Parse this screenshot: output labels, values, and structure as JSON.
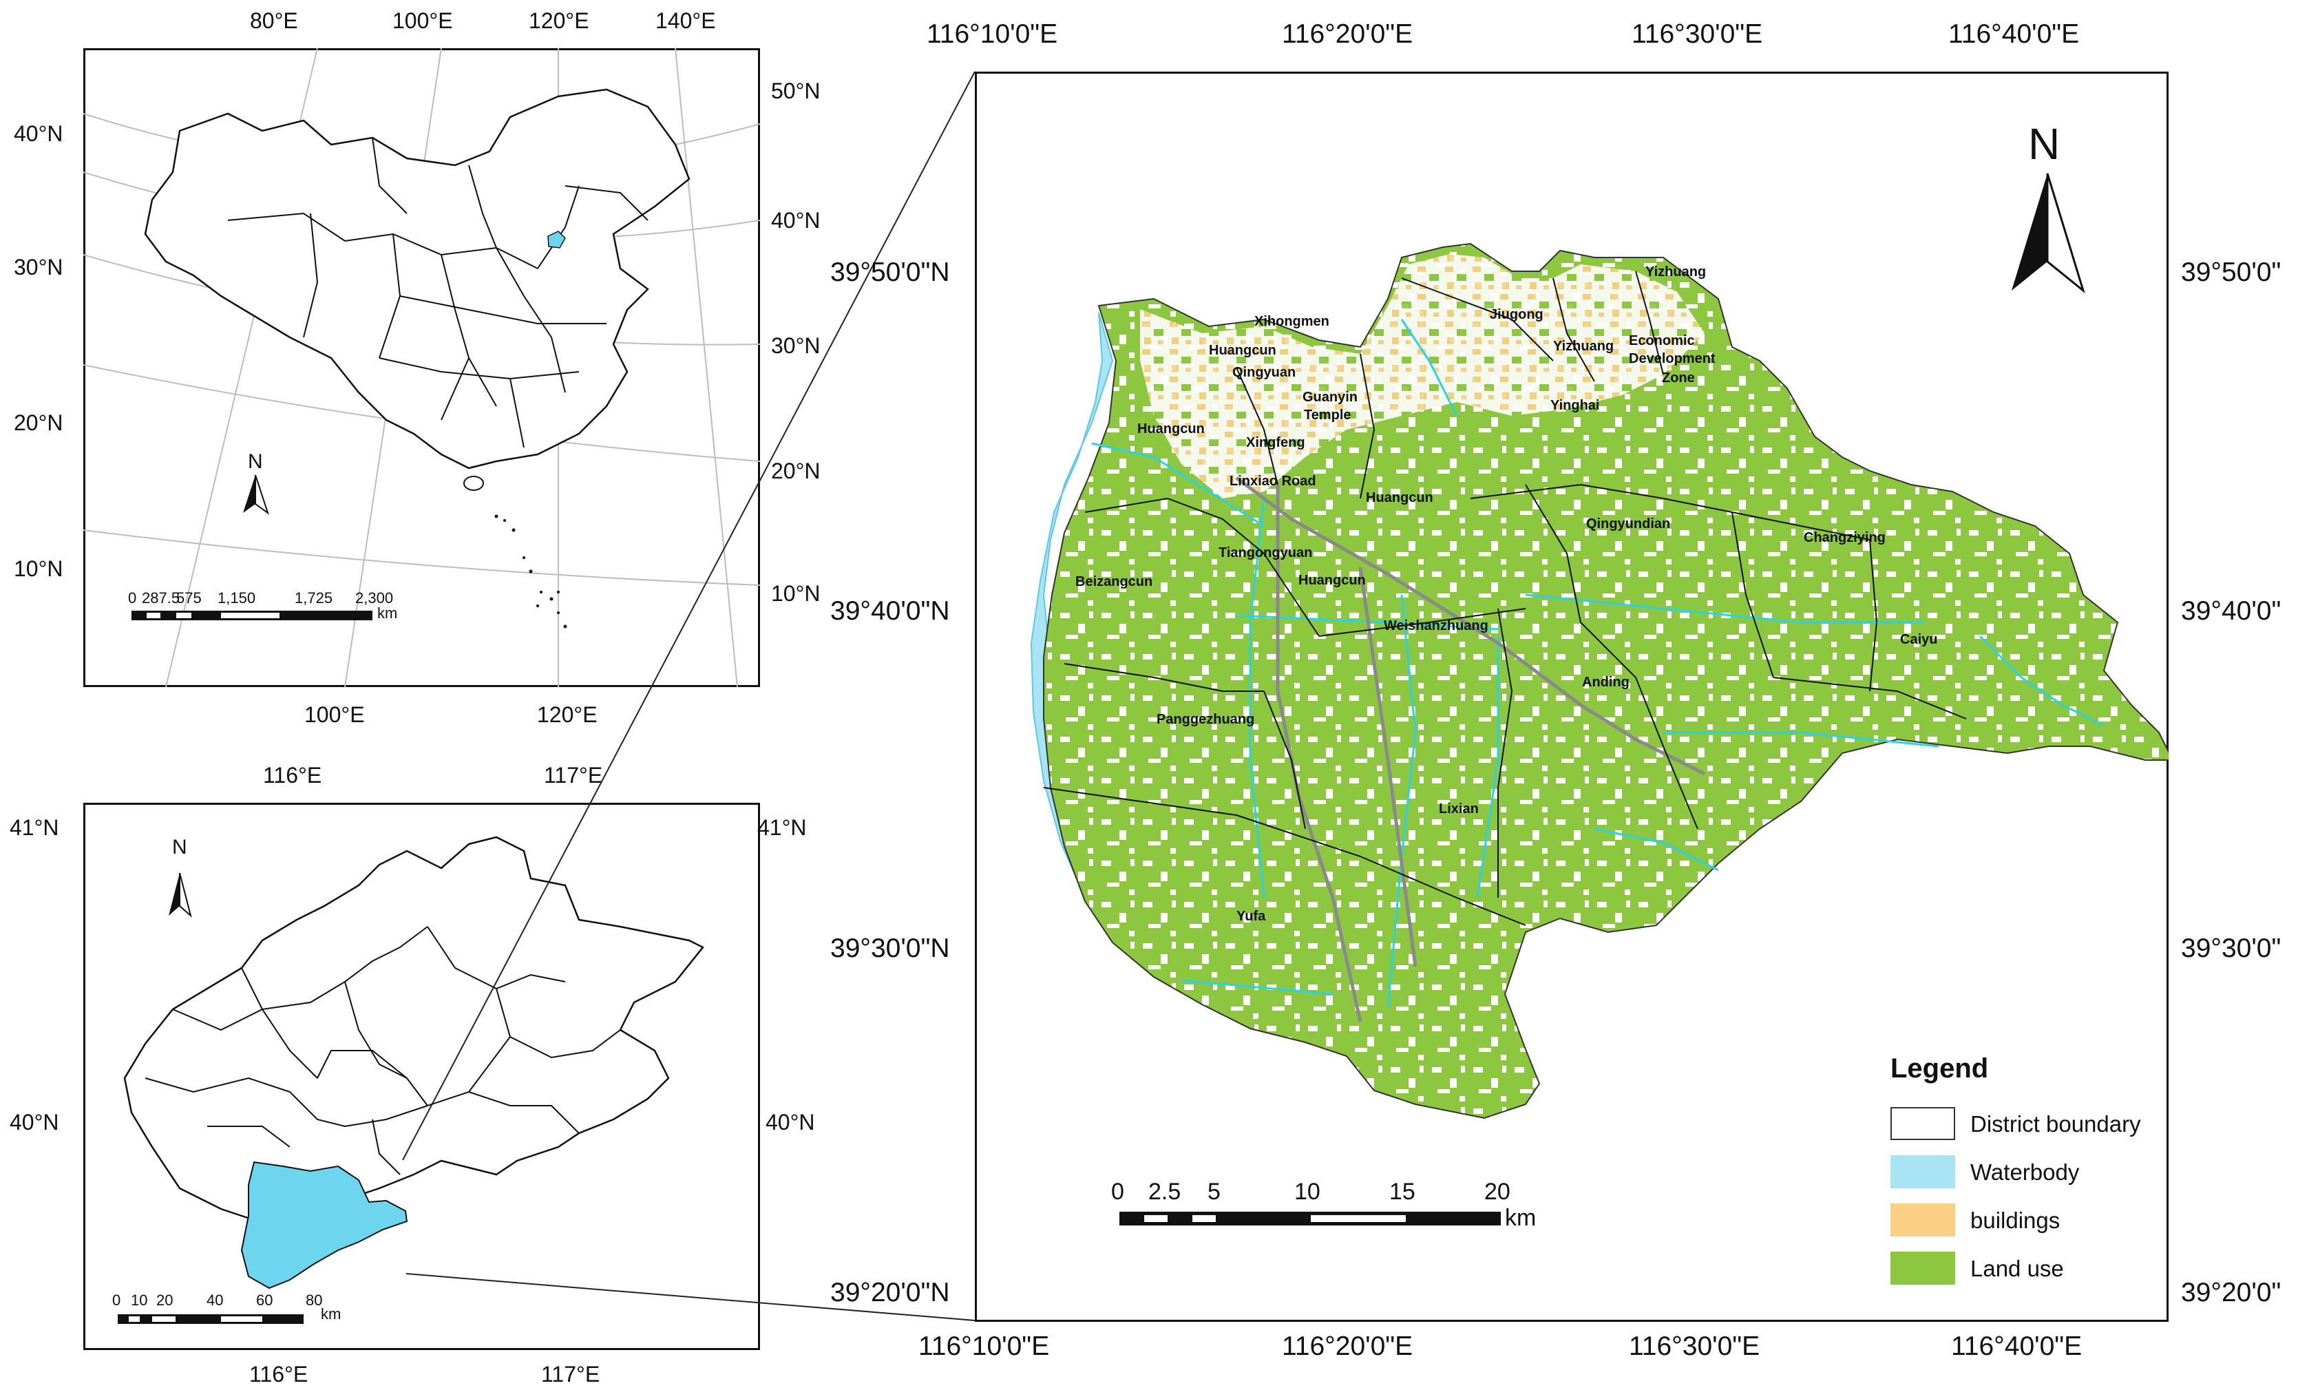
{
  "inset_china": {
    "top_labels": [
      "80°E",
      "100°E",
      "120°E",
      "140°E"
    ],
    "bottom_labels": [
      "100°E",
      "120°E"
    ],
    "left_labels": [
      "40°N",
      "30°N",
      "20°N",
      "10°N"
    ],
    "right_labels": [
      "50°N",
      "40°N",
      "30°N",
      "20°N",
      "10°N"
    ],
    "north": "N",
    "scale_numbers": [
      "0",
      "287.5",
      "575",
      "1,150",
      "1,725",
      "2,300"
    ],
    "scale_unit": "km"
  },
  "inset_beijing": {
    "top_labels": [
      "116°E",
      "117°E"
    ],
    "bottom_labels": [
      "116°E",
      "117°E"
    ],
    "left_labels": [
      "41°N",
      "40°N"
    ],
    "right_labels": [
      "41°N",
      "40°N"
    ],
    "north": "N",
    "scale_numbers": [
      "0",
      "10",
      "20",
      "40",
      "60",
      "80"
    ],
    "scale_unit": "km"
  },
  "main_map": {
    "top_labels": [
      "116°10'0\"E",
      "116°20'0\"E",
      "116°30'0\"E",
      "116°40'0\"E"
    ],
    "bottom_labels": [
      "116°10'0\"E",
      "116°20'0\"E",
      "116°30'0\"E",
      "116°40'0\"E"
    ],
    "left_labels": [
      "39°50'0\"N",
      "39°40'0\"N",
      "39°30'0\"N",
      "39°20'0\"N"
    ],
    "right_labels": [
      "39°50'0\"",
      "39°40'0\"",
      "39°30'0\"",
      "39°20'0\""
    ],
    "north": "N",
    "scale_numbers": [
      "0",
      "2.5",
      "5",
      "10",
      "15",
      "20"
    ],
    "scale_unit": "km",
    "places": [
      "Yizhuang",
      "Xihongmen",
      "Jiugong",
      "Huangcun",
      "Qingyuan",
      "Yizhuang",
      "Economic",
      "Development",
      "Zone",
      "Guanyin",
      "Temple",
      "Yinghai",
      "Huangcun",
      "Xingfeng",
      "Linxiao Road",
      "Huangcun",
      "Qingyundian",
      "Changziying",
      "Tiangongyuan",
      "Beizangcun",
      "Huangcun",
      "Weishanzhuang",
      "Caiyu",
      "Anding",
      "Panggezhuang",
      "Lixian",
      "Yufa"
    ]
  },
  "legend": {
    "title": "Legend",
    "items": [
      {
        "label": "District boundary",
        "color": "#ffffff"
      },
      {
        "label": "Waterbody",
        "color": "#a8e4f4"
      },
      {
        "label": "buildings",
        "color": "#fbd084"
      },
      {
        "label": "Land use",
        "color": "#8dc63f"
      }
    ]
  },
  "colors": {
    "land_use": "#8dc63f",
    "water": "#a8e4f4",
    "buildings": "#fbd084",
    "beijing_highlight": "#6dd6ee"
  }
}
